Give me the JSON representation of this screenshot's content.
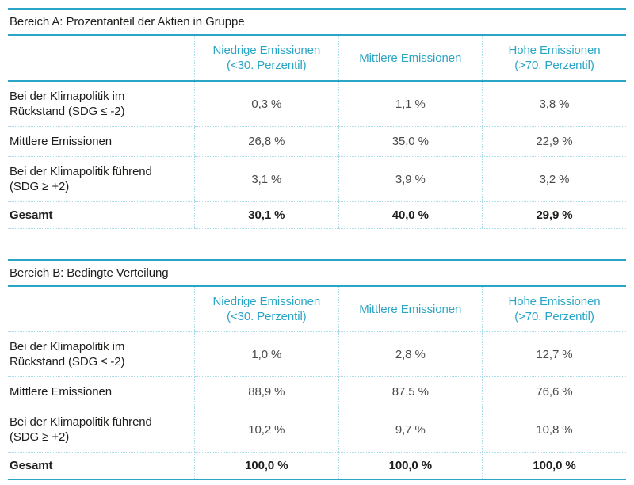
{
  "accent_color": "#2aa5c5",
  "grid_color": "#a8dcec",
  "chart_data": [
    {
      "type": "table",
      "title": "Bereich A: Prozentanteil der Aktien in Gruppe",
      "columns": [
        "Niedrige Emissionen\n(<30. Perzentil)",
        "Mittlere Emissionen",
        "Hohe Emissionen\n(>70. Perzentil)"
      ],
      "rows": [
        {
          "label": "Bei der Klimapolitik im\nRückstand (SDG ≤ -2)",
          "values": [
            "0,3 %",
            "1,1 %",
            "3,8 %"
          ],
          "bold": false
        },
        {
          "label": "Mittlere Emissionen",
          "values": [
            "26,8 %",
            "35,0 %",
            "22,9 %"
          ],
          "bold": false
        },
        {
          "label": "Bei der Klimapolitik führend\n(SDG ≥ +2)",
          "values": [
            "3,1 %",
            "3,9 %",
            "3,2 %"
          ],
          "bold": false
        },
        {
          "label": "Gesamt",
          "values": [
            "30,1 %",
            "40,0 %",
            "29,9 %"
          ],
          "bold": true
        }
      ]
    },
    {
      "type": "table",
      "title": "Bereich B: Bedingte Verteilung",
      "columns": [
        "Niedrige Emissionen\n(<30. Perzentil)",
        "Mittlere Emissionen",
        "Hohe Emissionen\n(>70. Perzentil)"
      ],
      "rows": [
        {
          "label": "Bei der Klimapolitik im\nRückstand (SDG ≤ -2)",
          "values": [
            "1,0 %",
            "2,8 %",
            "12,7 %"
          ],
          "bold": false
        },
        {
          "label": "Mittlere Emissionen",
          "values": [
            "88,9 %",
            "87,5 %",
            "76,6 %"
          ],
          "bold": false
        },
        {
          "label": "Bei der Klimapolitik führend\n(SDG ≥ +2)",
          "values": [
            "10,2 %",
            "9,7 %",
            "10,8 %"
          ],
          "bold": false
        },
        {
          "label": "Gesamt",
          "values": [
            "100,0 %",
            "100,0 %",
            "100,0 %"
          ],
          "bold": true
        }
      ]
    }
  ]
}
